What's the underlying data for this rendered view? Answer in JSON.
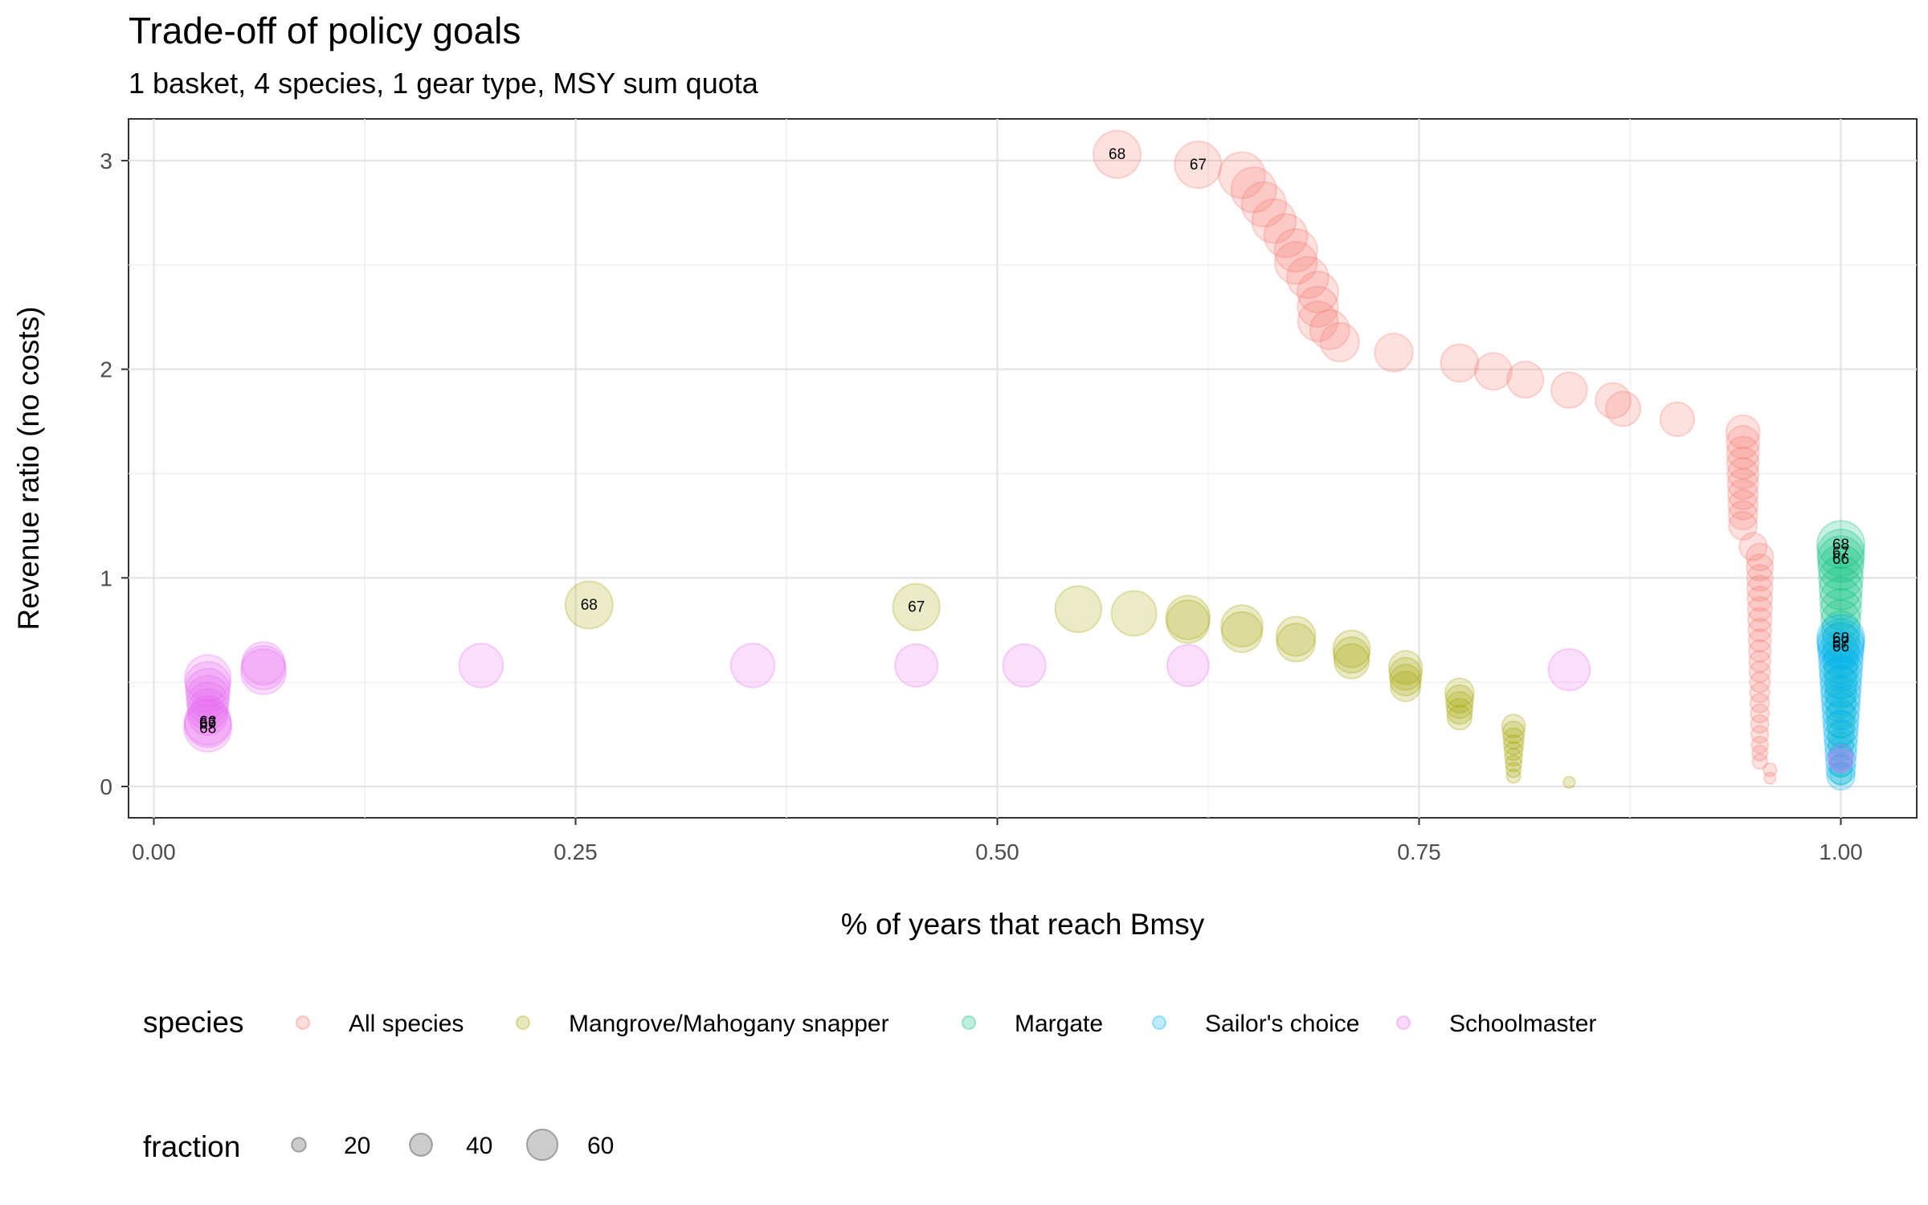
{
  "chart_data": {
    "type": "scatter",
    "title": "Trade-off of policy goals",
    "subtitle": "1 basket, 4 species, 1 gear type, MSY sum quota",
    "xlabel": "% of years that reach Bmsy",
    "ylabel": "Revenue ratio (no costs)",
    "xlim": [
      -0.015,
      1.045
    ],
    "ylim": [
      -0.15,
      3.2
    ],
    "xticks": [
      0,
      0.25,
      0.5,
      0.75,
      1.0
    ],
    "xtick_labels": [
      "0.00",
      "0.25",
      "0.50",
      "0.75",
      "1.00"
    ],
    "yticks": [
      0,
      1,
      2,
      3
    ],
    "ytick_labels": [
      "0",
      "1",
      "2",
      "3"
    ],
    "grid": true,
    "legend_placement": "bottom",
    "color_legend": {
      "title": "species",
      "entries": [
        "All species",
        "Mangrove/Mahogany snapper",
        "Margate",
        "Sailor's choice",
        "Schoolmaster"
      ]
    },
    "size_legend": {
      "title": "fraction",
      "values": [
        20,
        40,
        60
      ],
      "labels": [
        "20",
        "40",
        "60"
      ]
    },
    "series": [
      {
        "name": "All species",
        "color": "#F8766D",
        "points": [
          [
            0.571,
            3.03,
            68,
            "68"
          ],
          [
            0.619,
            2.98,
            67,
            "67"
          ],
          [
            0.645,
            2.93,
            66,
            ""
          ],
          [
            0.652,
            2.86,
            64,
            ""
          ],
          [
            0.658,
            2.79,
            63,
            ""
          ],
          [
            0.664,
            2.71,
            62,
            ""
          ],
          [
            0.671,
            2.64,
            61,
            ""
          ],
          [
            0.677,
            2.57,
            60,
            ""
          ],
          [
            0.677,
            2.51,
            59,
            ""
          ],
          [
            0.684,
            2.44,
            58,
            ""
          ],
          [
            0.69,
            2.37,
            57,
            ""
          ],
          [
            0.69,
            2.3,
            56,
            ""
          ],
          [
            0.69,
            2.23,
            55,
            ""
          ],
          [
            0.697,
            2.19,
            54,
            ""
          ],
          [
            0.703,
            2.13,
            53,
            ""
          ],
          [
            0.735,
            2.08,
            52,
            ""
          ],
          [
            0.774,
            2.03,
            51,
            ""
          ],
          [
            0.794,
            1.99,
            50,
            ""
          ],
          [
            0.813,
            1.95,
            49,
            ""
          ],
          [
            0.839,
            1.9,
            48,
            ""
          ],
          [
            0.865,
            1.85,
            47,
            ""
          ],
          [
            0.871,
            1.81,
            46,
            ""
          ],
          [
            0.903,
            1.76,
            45,
            ""
          ],
          [
            0.942,
            1.7,
            44,
            ""
          ],
          [
            0.942,
            1.65,
            43,
            ""
          ],
          [
            0.942,
            1.6,
            42,
            ""
          ],
          [
            0.942,
            1.55,
            41,
            ""
          ],
          [
            0.942,
            1.5,
            40,
            ""
          ],
          [
            0.942,
            1.45,
            39,
            ""
          ],
          [
            0.942,
            1.4,
            38,
            ""
          ],
          [
            0.942,
            1.35,
            37,
            ""
          ],
          [
            0.942,
            1.3,
            36,
            ""
          ],
          [
            0.942,
            1.25,
            35,
            ""
          ],
          [
            0.948,
            1.15,
            34,
            ""
          ],
          [
            0.952,
            1.1,
            33,
            ""
          ],
          [
            0.952,
            1.05,
            32,
            ""
          ],
          [
            0.952,
            1.0,
            31,
            ""
          ],
          [
            0.952,
            0.95,
            30,
            ""
          ],
          [
            0.952,
            0.9,
            29,
            ""
          ],
          [
            0.952,
            0.85,
            28,
            ""
          ],
          [
            0.952,
            0.8,
            27,
            ""
          ],
          [
            0.952,
            0.75,
            26,
            ""
          ],
          [
            0.952,
            0.7,
            25,
            ""
          ],
          [
            0.952,
            0.65,
            24,
            ""
          ],
          [
            0.952,
            0.6,
            23,
            ""
          ],
          [
            0.952,
            0.55,
            22,
            ""
          ],
          [
            0.952,
            0.5,
            21,
            ""
          ],
          [
            0.952,
            0.45,
            20,
            ""
          ],
          [
            0.952,
            0.4,
            19,
            ""
          ],
          [
            0.952,
            0.35,
            18,
            ""
          ],
          [
            0.952,
            0.3,
            17,
            ""
          ],
          [
            0.952,
            0.25,
            16,
            ""
          ],
          [
            0.952,
            0.2,
            15,
            ""
          ],
          [
            0.952,
            0.16,
            13,
            ""
          ],
          [
            0.952,
            0.12,
            12,
            ""
          ],
          [
            0.958,
            0.08,
            9,
            ""
          ],
          [
            0.958,
            0.04,
            6,
            ""
          ]
        ]
      },
      {
        "name": "Mangrove/Mahogany snapper",
        "color": "#A3A500",
        "points": [
          [
            0.258,
            0.87,
            68,
            "68"
          ],
          [
            0.452,
            0.86,
            67,
            "67"
          ],
          [
            0.548,
            0.85,
            66,
            ""
          ],
          [
            0.581,
            0.83,
            64,
            ""
          ],
          [
            0.613,
            0.81,
            62,
            ""
          ],
          [
            0.613,
            0.79,
            60,
            ""
          ],
          [
            0.645,
            0.77,
            58,
            ""
          ],
          [
            0.645,
            0.74,
            56,
            ""
          ],
          [
            0.677,
            0.72,
            54,
            ""
          ],
          [
            0.677,
            0.69,
            52,
            ""
          ],
          [
            0.71,
            0.66,
            50,
            ""
          ],
          [
            0.71,
            0.63,
            48,
            ""
          ],
          [
            0.71,
            0.6,
            46,
            ""
          ],
          [
            0.742,
            0.57,
            44,
            ""
          ],
          [
            0.742,
            0.54,
            42,
            ""
          ],
          [
            0.742,
            0.51,
            40,
            ""
          ],
          [
            0.742,
            0.48,
            38,
            ""
          ],
          [
            0.774,
            0.45,
            36,
            ""
          ],
          [
            0.774,
            0.42,
            34,
            ""
          ],
          [
            0.774,
            0.39,
            32,
            ""
          ],
          [
            0.774,
            0.36,
            30,
            ""
          ],
          [
            0.774,
            0.33,
            28,
            ""
          ],
          [
            0.806,
            0.29,
            26,
            ""
          ],
          [
            0.806,
            0.26,
            24,
            ""
          ],
          [
            0.806,
            0.23,
            22,
            ""
          ],
          [
            0.806,
            0.2,
            20,
            ""
          ],
          [
            0.806,
            0.17,
            18,
            ""
          ],
          [
            0.806,
            0.14,
            16,
            ""
          ],
          [
            0.806,
            0.11,
            14,
            ""
          ],
          [
            0.806,
            0.08,
            12,
            ""
          ],
          [
            0.806,
            0.05,
            10,
            ""
          ],
          [
            0.839,
            0.02,
            6,
            ""
          ]
        ]
      },
      {
        "name": "Margate",
        "color": "#00BF7D",
        "points": [
          [
            1.0,
            1.16,
            68,
            "68"
          ],
          [
            1.0,
            1.12,
            67,
            "67"
          ],
          [
            1.0,
            1.09,
            66,
            "66"
          ],
          [
            1.0,
            1.05,
            64,
            ""
          ],
          [
            1.0,
            1.0,
            62,
            ""
          ],
          [
            1.0,
            0.95,
            60,
            ""
          ],
          [
            1.0,
            0.9,
            58,
            ""
          ],
          [
            1.0,
            0.85,
            56,
            ""
          ],
          [
            1.0,
            0.8,
            54,
            ""
          ],
          [
            1.0,
            0.75,
            52,
            ""
          ],
          [
            1.0,
            0.7,
            50,
            ""
          ],
          [
            1.0,
            0.65,
            48,
            ""
          ],
          [
            1.0,
            0.6,
            46,
            ""
          ],
          [
            1.0,
            0.55,
            44,
            ""
          ],
          [
            1.0,
            0.5,
            42,
            ""
          ],
          [
            1.0,
            0.45,
            40,
            ""
          ],
          [
            1.0,
            0.4,
            38,
            ""
          ],
          [
            1.0,
            0.35,
            36,
            ""
          ],
          [
            1.0,
            0.3,
            34,
            ""
          ],
          [
            1.0,
            0.25,
            32,
            ""
          ],
          [
            1.0,
            0.2,
            30,
            ""
          ],
          [
            1.0,
            0.15,
            28,
            ""
          ],
          [
            1.0,
            0.1,
            26,
            ""
          ],
          [
            1.0,
            0.06,
            24,
            ""
          ]
        ]
      },
      {
        "name": "Sailor's choice",
        "color": "#00B0F6",
        "points": [
          [
            1.0,
            0.71,
            68,
            "68"
          ],
          [
            1.0,
            0.69,
            67,
            "67"
          ],
          [
            1.0,
            0.67,
            66,
            "66"
          ],
          [
            1.0,
            0.64,
            64,
            ""
          ],
          [
            1.0,
            0.6,
            62,
            ""
          ],
          [
            1.0,
            0.56,
            60,
            ""
          ],
          [
            1.0,
            0.52,
            58,
            ""
          ],
          [
            1.0,
            0.48,
            56,
            ""
          ],
          [
            1.0,
            0.44,
            54,
            ""
          ],
          [
            1.0,
            0.4,
            52,
            ""
          ],
          [
            1.0,
            0.36,
            50,
            ""
          ],
          [
            1.0,
            0.32,
            48,
            ""
          ],
          [
            1.0,
            0.28,
            46,
            ""
          ],
          [
            1.0,
            0.24,
            44,
            ""
          ],
          [
            1.0,
            0.2,
            42,
            ""
          ],
          [
            1.0,
            0.16,
            40,
            ""
          ],
          [
            1.0,
            0.12,
            38,
            ""
          ],
          [
            1.0,
            0.08,
            36,
            ""
          ],
          [
            1.0,
            0.05,
            34,
            ""
          ]
        ]
      },
      {
        "name": "Schoolmaster",
        "color": "#E76BF3",
        "points": [
          [
            0.032,
            0.52,
            66,
            ""
          ],
          [
            0.032,
            0.49,
            64,
            ""
          ],
          [
            0.032,
            0.46,
            62,
            ""
          ],
          [
            0.032,
            0.43,
            60,
            ""
          ],
          [
            0.032,
            0.4,
            58,
            ""
          ],
          [
            0.032,
            0.37,
            56,
            ""
          ],
          [
            0.032,
            0.34,
            54,
            ""
          ],
          [
            0.032,
            0.31,
            66,
            "66"
          ],
          [
            0.032,
            0.3,
            67,
            "67"
          ],
          [
            0.032,
            0.28,
            68,
            "68"
          ],
          [
            0.065,
            0.59,
            60,
            ""
          ],
          [
            0.065,
            0.57,
            62,
            ""
          ],
          [
            0.065,
            0.55,
            64,
            ""
          ],
          [
            0.194,
            0.58,
            62,
            ""
          ],
          [
            0.355,
            0.58,
            62,
            ""
          ],
          [
            0.452,
            0.58,
            60,
            ""
          ],
          [
            0.516,
            0.58,
            60,
            ""
          ],
          [
            0.613,
            0.58,
            58,
            ""
          ],
          [
            0.839,
            0.56,
            58,
            ""
          ],
          [
            1.0,
            0.14,
            30,
            ""
          ],
          [
            1.0,
            0.12,
            26,
            ""
          ]
        ]
      }
    ]
  }
}
